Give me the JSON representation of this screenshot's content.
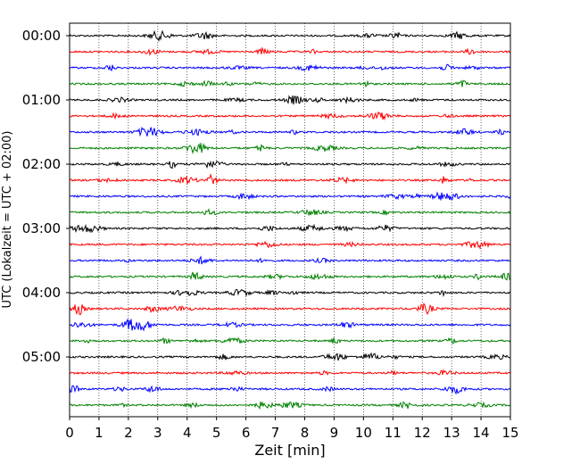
{
  "chart_data": {
    "type": "line",
    "title": "",
    "xlabel": "Zeit  [min]",
    "ylabel": "UTC (Lokalzeit = UTC + 02:00)",
    "xlim": [
      0,
      15
    ],
    "x_ticks": [
      "0",
      "1",
      "2",
      "3",
      "4",
      "5",
      "6",
      "7",
      "8",
      "9",
      "10",
      "11",
      "12",
      "13",
      "14",
      "15"
    ],
    "y_ticks": [
      "00:00",
      "01:00",
      "02:00",
      "03:00",
      "04:00",
      "05:00"
    ],
    "grid": "vertical dotted lines at each minute",
    "trace_interval_minutes": 15,
    "trace_count": 24,
    "trace_start_times": [
      "00:00",
      "00:15",
      "00:30",
      "00:45",
      "01:00",
      "01:15",
      "01:30",
      "01:45",
      "02:00",
      "02:15",
      "02:30",
      "02:45",
      "03:00",
      "03:15",
      "03:30",
      "03:45",
      "04:00",
      "04:15",
      "04:30",
      "04:45",
      "05:00",
      "05:15",
      "05:30",
      "05:45"
    ],
    "series_colors": [
      "#000000",
      "#ff0000",
      "#0000ff",
      "#008000"
    ]
  }
}
